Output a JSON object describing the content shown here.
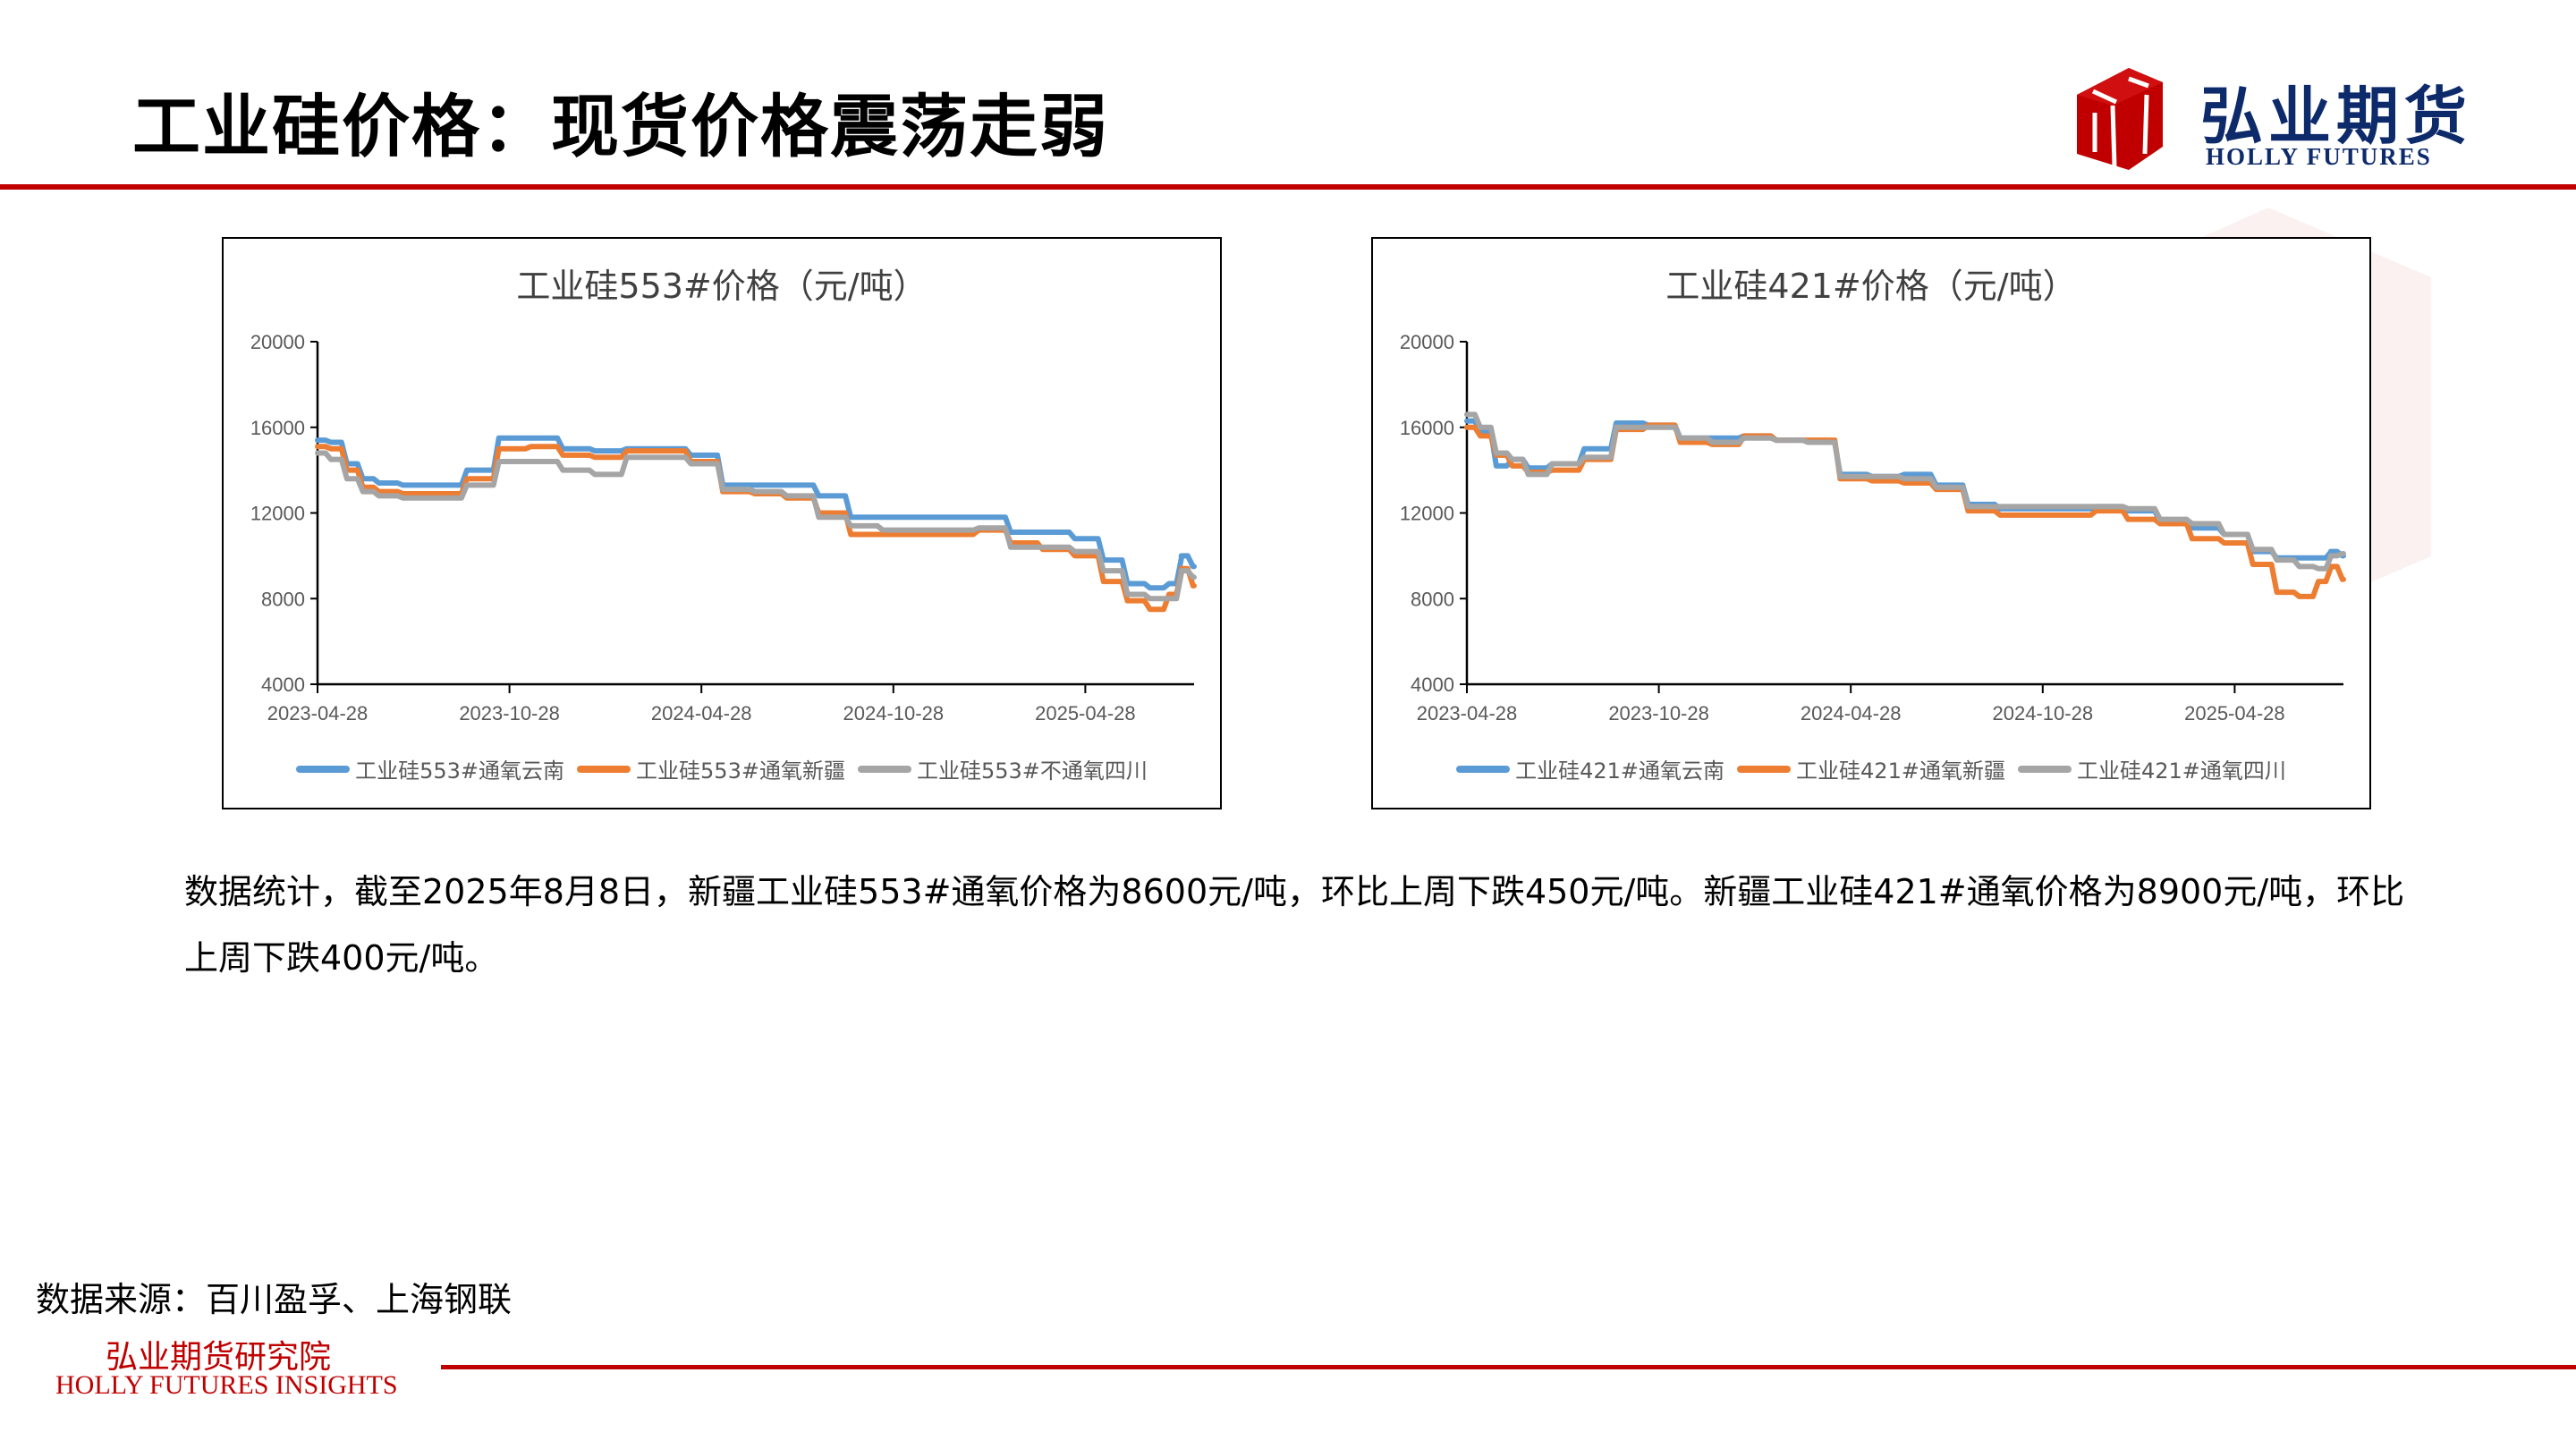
{
  "header": {
    "title": "工业硅价格：现货价格震荡走弱",
    "logo_cn": "弘业期货",
    "logo_en": "HOLLY FUTURES",
    "accent_color": "#c00000",
    "logo_color": "#0d2a6b"
  },
  "body": {
    "paragraph": "数据统计，截至2025年8月8日，新疆工业硅553#通氧价格为8600元/吨，环比上周下跌450元/吨。新疆工业硅421#通氧价格为8900元/吨，环比上周下跌400元/吨。"
  },
  "footer": {
    "source": "数据来源：百川盈孚、上海钢联",
    "institute_cn": "弘业期货研究院",
    "institute_en": "HOLLY FUTURES INSIGHTS"
  },
  "chart_data": [
    {
      "type": "line",
      "title": "工业硅553#价格（元/吨）",
      "xlabel": "",
      "ylabel": "",
      "ylim": [
        4000,
        20000
      ],
      "yticks": [
        4000,
        8000,
        12000,
        16000,
        20000
      ],
      "xticks": [
        "2023-04-28",
        "2023-10-28",
        "2024-04-28",
        "2024-10-28",
        "2025-04-28"
      ],
      "x_range_months": [
        0,
        27.4
      ],
      "grid": false,
      "legend_position": "bottom",
      "x_months": [
        0,
        0.5,
        1,
        1.5,
        2,
        3,
        4,
        5,
        6,
        7,
        8,
        9,
        10,
        11,
        12,
        13,
        14,
        15,
        16,
        17,
        18,
        19,
        20,
        21,
        22,
        23,
        24,
        24.8,
        25.5,
        26.2,
        26.7,
        27,
        27.4
      ],
      "series": [
        {
          "name": "工业硅553#通氧云南",
          "color": "#5b9bd5",
          "values": [
            15400,
            15300,
            14300,
            13600,
            13400,
            13300,
            13300,
            14000,
            15500,
            15500,
            15000,
            14900,
            15000,
            15000,
            14700,
            13300,
            13300,
            13300,
            12800,
            11800,
            11800,
            11800,
            11800,
            11800,
            11100,
            11100,
            10800,
            9800,
            8700,
            8500,
            8700,
            10000,
            9500
          ]
        },
        {
          "name": "工业硅553#通氧新疆",
          "color": "#ed7d31",
          "values": [
            15100,
            15000,
            14000,
            13200,
            13000,
            12900,
            12900,
            13600,
            15000,
            15100,
            14700,
            14600,
            14900,
            14900,
            14400,
            13000,
            12900,
            12700,
            12000,
            11000,
            11000,
            11000,
            11000,
            11200,
            10600,
            10300,
            10000,
            8800,
            7900,
            7500,
            8200,
            9400,
            8600
          ]
        },
        {
          "name": "工业硅553#不通氧四川",
          "color": "#a5a5a5",
          "values": [
            14800,
            14500,
            13600,
            13000,
            12800,
            12700,
            12700,
            13300,
            14400,
            14400,
            14000,
            13800,
            14600,
            14600,
            14300,
            13100,
            13000,
            12800,
            11800,
            11400,
            11200,
            11200,
            11200,
            11300,
            10400,
            10400,
            10200,
            9300,
            8200,
            8000,
            8000,
            9300,
            9000
          ]
        }
      ]
    },
    {
      "type": "line",
      "title": "工业硅421#价格（元/吨）",
      "xlabel": "",
      "ylabel": "",
      "ylim": [
        4000,
        20000
      ],
      "yticks": [
        4000,
        8000,
        12000,
        16000,
        20000
      ],
      "xticks": [
        "2023-04-28",
        "2023-10-28",
        "2024-04-28",
        "2024-10-28",
        "2025-04-28"
      ],
      "x_range_months": [
        0,
        27.4
      ],
      "grid": false,
      "legend_position": "bottom",
      "x_months": [
        0,
        0.5,
        1,
        1.5,
        2,
        3,
        4,
        5,
        6,
        7,
        8,
        9,
        10,
        11,
        12,
        13,
        14,
        15,
        16,
        17,
        18,
        19,
        20,
        21,
        22,
        23,
        24,
        24.8,
        25.5,
        26.2,
        26.7,
        27,
        27.4
      ],
      "series": [
        {
          "name": "工业硅421#通氧云南",
          "color": "#5b9bd5",
          "values": [
            16300,
            15800,
            14200,
            14500,
            14100,
            14300,
            15000,
            16200,
            16100,
            15500,
            15500,
            15600,
            15400,
            15300,
            13800,
            13700,
            13800,
            13300,
            12400,
            12200,
            12200,
            12200,
            12300,
            12100,
            11600,
            11300,
            11000,
            10200,
            9900,
            9900,
            9900,
            10200,
            10000
          ]
        },
        {
          "name": "工业硅421#通氧新疆",
          "color": "#ed7d31",
          "values": [
            16000,
            15600,
            14700,
            14200,
            13900,
            14000,
            14500,
            15900,
            16100,
            15300,
            15200,
            15600,
            15400,
            15400,
            13600,
            13500,
            13400,
            13100,
            12100,
            11900,
            11900,
            11900,
            12100,
            11700,
            11500,
            10800,
            10600,
            9600,
            8300,
            8100,
            8800,
            9500,
            8900
          ]
        },
        {
          "name": "工业硅421#通氧四川",
          "color": "#a5a5a5",
          "values": [
            16600,
            16000,
            14800,
            14500,
            13800,
            14300,
            14600,
            16000,
            16000,
            15500,
            15300,
            15500,
            15400,
            15300,
            13700,
            13700,
            13600,
            13200,
            12300,
            12300,
            12300,
            12300,
            12300,
            12200,
            11700,
            11500,
            11000,
            10300,
            9800,
            9500,
            9400,
            10000,
            10100
          ]
        }
      ]
    }
  ]
}
